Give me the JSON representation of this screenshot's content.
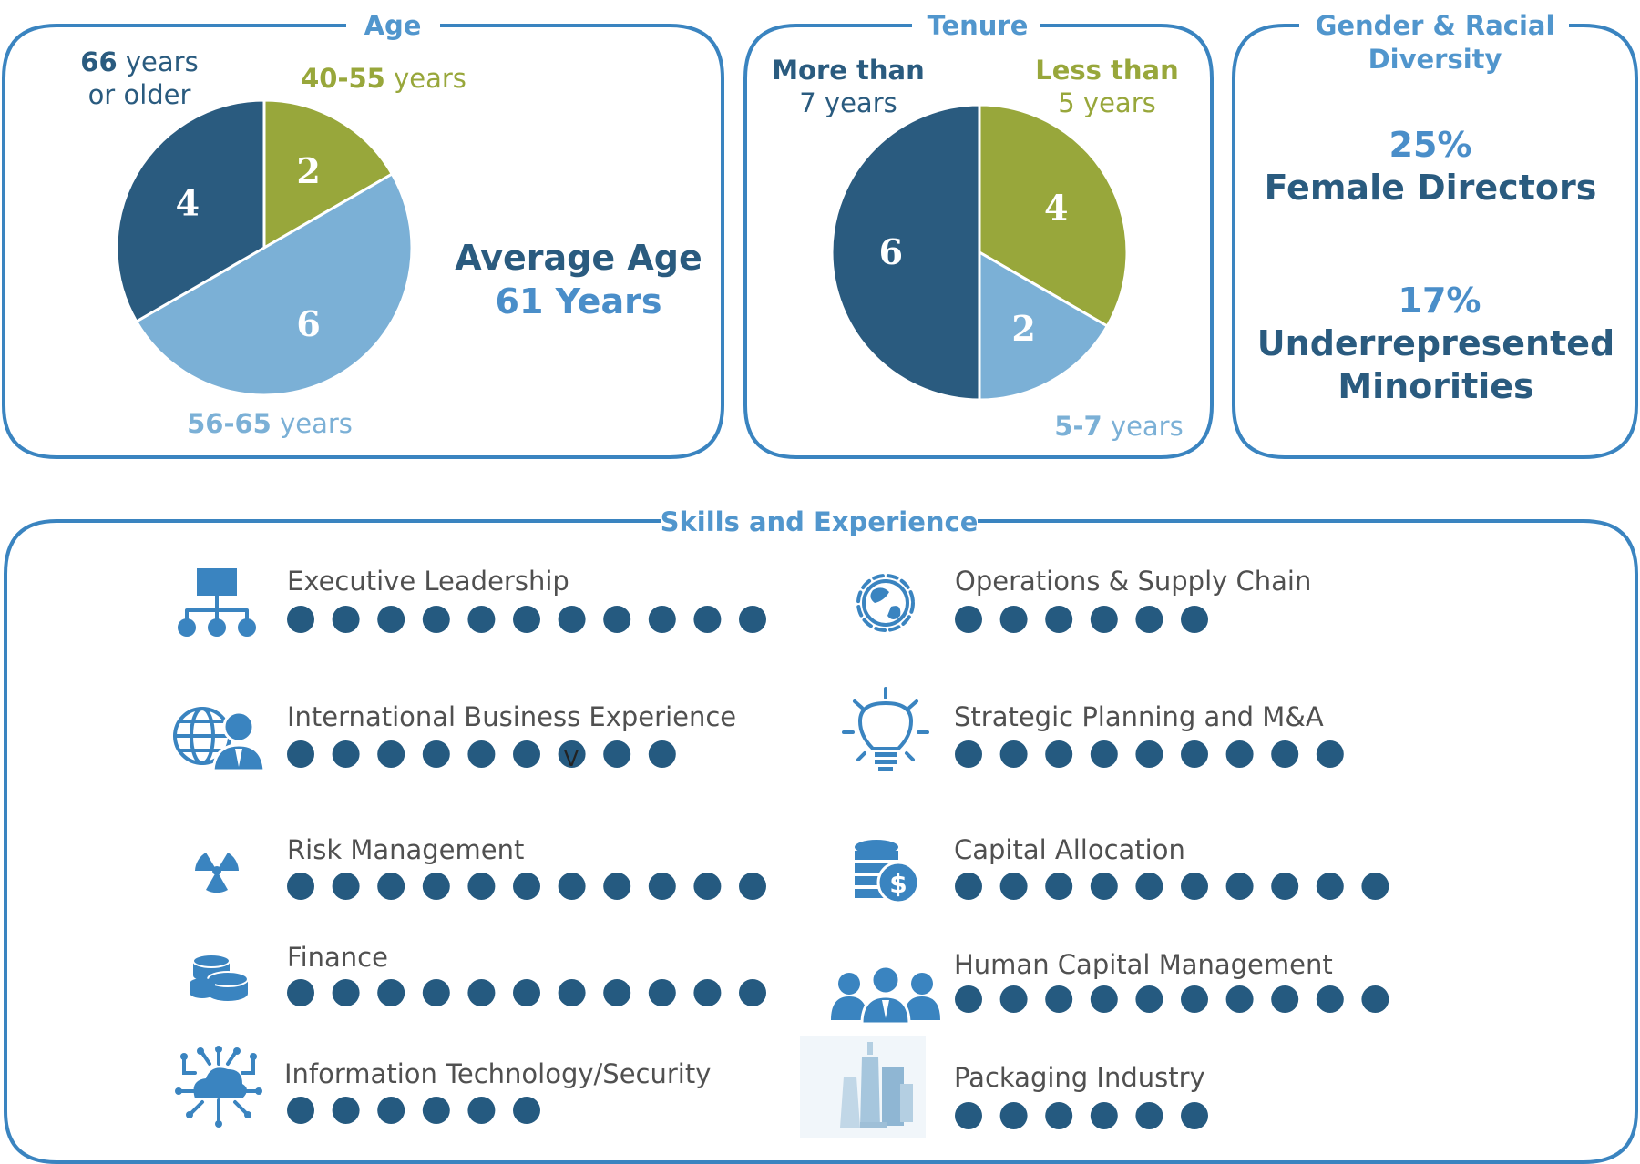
{
  "colors": {
    "dark_blue": "#2a5b7f",
    "light_blue": "#7bb0d6",
    "olive": "#98a73b",
    "panel_stroke": "#3a84c0",
    "title_blue": "#5196cd",
    "dot": "#255a80"
  },
  "chart_data": [
    {
      "type": "pie",
      "title": "Age",
      "slices": [
        {
          "label_bold": "40-55",
          "label_rest": " years",
          "value": 2,
          "color": "olive"
        },
        {
          "label_bold": "56-65",
          "label_rest": " years",
          "value": 6,
          "color": "light_blue"
        },
        {
          "label_bold": "66",
          "label_rest": " years",
          "label_line2": "or older",
          "value": 4,
          "color": "dark_blue"
        }
      ],
      "annotation": {
        "line1": "Average Age",
        "line2": "61 Years"
      }
    },
    {
      "type": "pie",
      "title": "Tenure",
      "slices": [
        {
          "label_line1": "Less than",
          "label_line2": "5 years",
          "value": 4,
          "color": "olive"
        },
        {
          "label_bold": "5-7",
          "label_rest": " years",
          "value": 2,
          "color": "light_blue"
        },
        {
          "label_line1": "More than",
          "label_line2": "7 years",
          "value": 6,
          "color": "dark_blue"
        }
      ]
    },
    {
      "type": "table",
      "title": "Skills and Experience",
      "stray_mark": "V",
      "skills": [
        {
          "name": "Executive Leadership",
          "count": 11,
          "icon": "org-chart-icon"
        },
        {
          "name": "International Business Experience",
          "count": 9,
          "icon": "globe-person-icon"
        },
        {
          "name": "Risk Management",
          "count": 11,
          "icon": "radiation-icon"
        },
        {
          "name": "Finance",
          "count": 11,
          "icon": "coins-icon"
        },
        {
          "name": "Information Technology/Security",
          "count": 6,
          "icon": "cloud-network-icon"
        },
        {
          "name": "Operations & Supply Chain",
          "count": 6,
          "icon": "globe-gear-icon"
        },
        {
          "name": "Strategic Planning and M&A",
          "count": 9,
          "icon": "lightbulb-icon"
        },
        {
          "name": "Capital Allocation",
          "count": 10,
          "icon": "database-dollar-icon"
        },
        {
          "name": "Human Capital Management",
          "count": 10,
          "icon": "people-group-icon"
        },
        {
          "name": "Packaging Industry",
          "count": 6,
          "icon": "bottles-icon"
        }
      ]
    }
  ],
  "diversity": {
    "title_line1": "Gender & Racial",
    "title_line2": "Diversity",
    "female_pct": "25%",
    "female_label": "Female Directors",
    "minority_pct": "17%",
    "minority_line1": "Underrepresented",
    "minority_line2": "Minorities"
  }
}
